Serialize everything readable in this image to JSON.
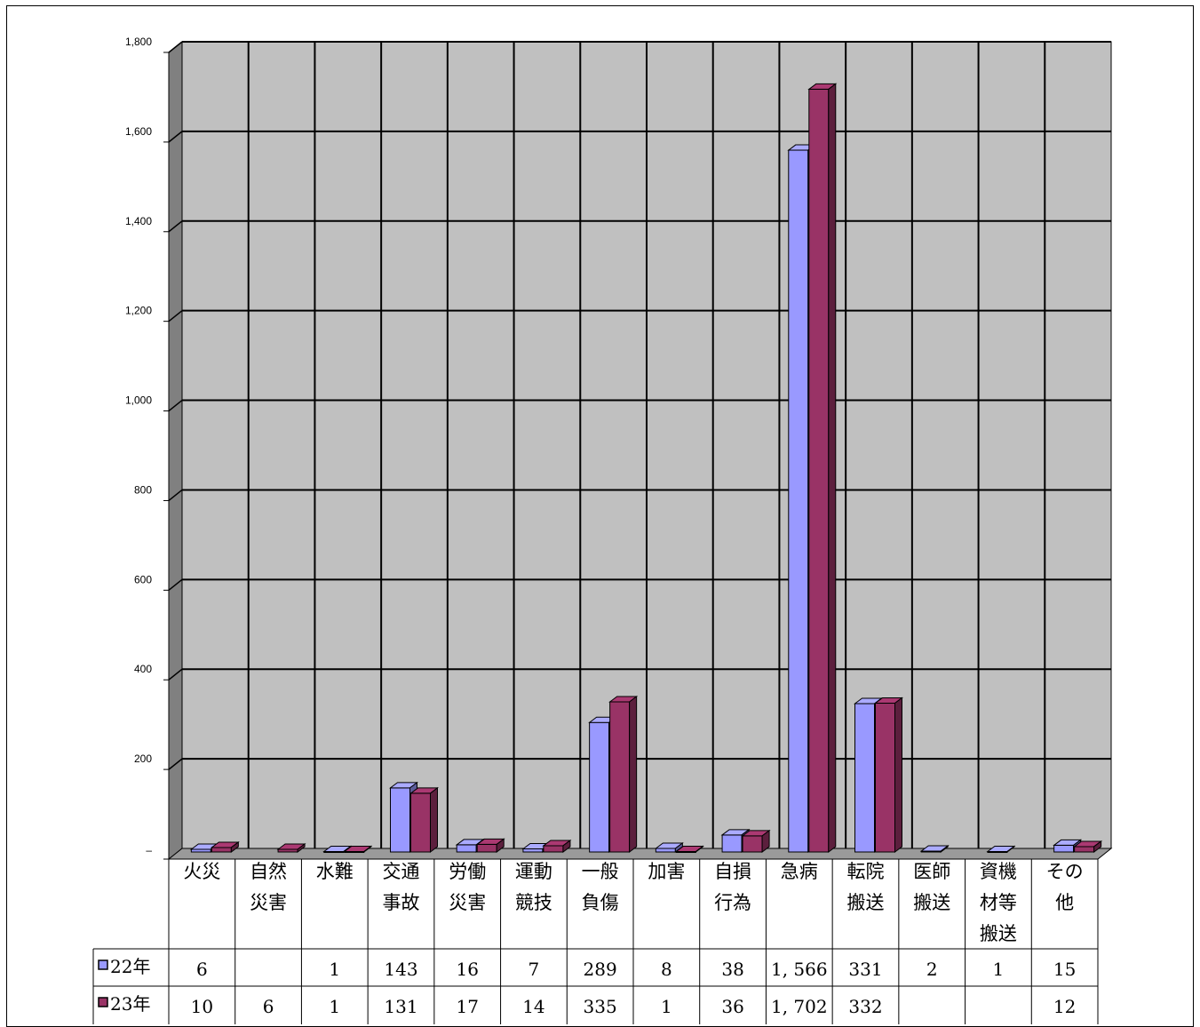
{
  "chart_data": {
    "type": "bar",
    "ylim": [
      0,
      1800
    ],
    "yticks": [
      "–",
      "200",
      "400",
      "600",
      "800",
      "1,000",
      "1,200",
      "1,400",
      "1,600",
      "1,800"
    ],
    "grid": true,
    "categories": [
      [
        "火災"
      ],
      [
        "自然",
        "災害"
      ],
      [
        "水難"
      ],
      [
        "交通",
        "事故"
      ],
      [
        "労働",
        "災害"
      ],
      [
        "運動",
        "競技"
      ],
      [
        "一般",
        "負傷"
      ],
      [
        "加害"
      ],
      [
        "自損",
        "行為"
      ],
      [
        "急病"
      ],
      [
        "転院",
        "搬送"
      ],
      [
        "医師",
        "搬送"
      ],
      [
        "資機",
        "材等",
        "搬送"
      ],
      [
        "その",
        "他"
      ]
    ],
    "series": [
      {
        "name": "22年",
        "color": "#9999ff",
        "values": [
          6,
          null,
          1,
          143,
          16,
          7,
          289,
          8,
          38,
          1566,
          331,
          2,
          1,
          15
        ],
        "labels": [
          "6",
          "",
          "1",
          "143",
          "16",
          "7",
          "289",
          "8",
          "38",
          "1, 566",
          "331",
          "2",
          "1",
          "15"
        ]
      },
      {
        "name": "23年",
        "color": "#993366",
        "values": [
          10,
          6,
          1,
          131,
          17,
          14,
          335,
          1,
          36,
          1702,
          332,
          null,
          null,
          12
        ],
        "labels": [
          "10",
          "6",
          "1",
          "131",
          "17",
          "14",
          "335",
          "1",
          "36",
          "1, 702",
          "332",
          "",
          "",
          "12"
        ]
      }
    ]
  }
}
